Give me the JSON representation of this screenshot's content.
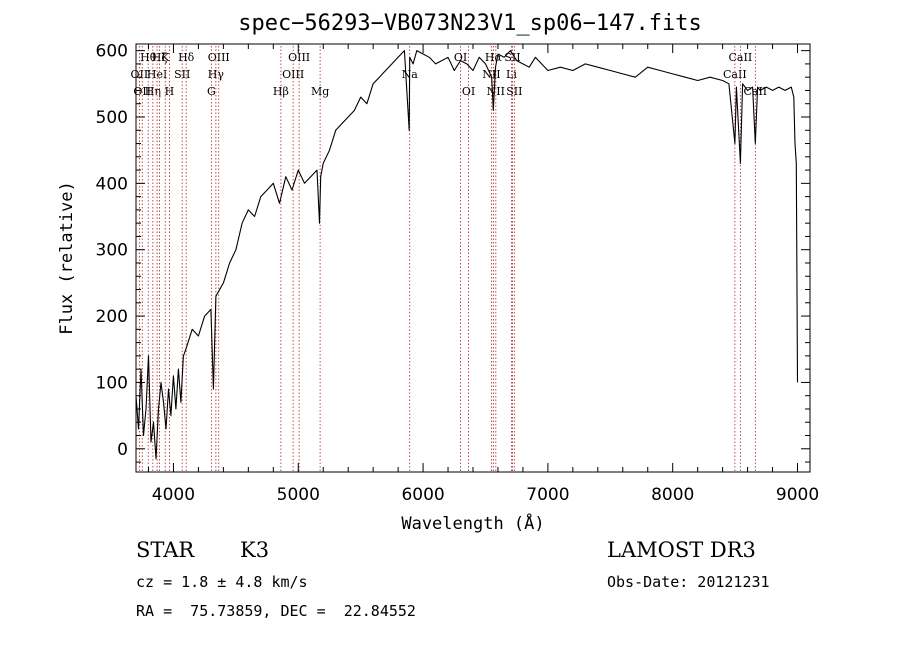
{
  "chart_data": {
    "type": "line",
    "title": "spec−56293−VB073N23V1_sp06−147.fits",
    "xlabel": "Wavelength (Å)",
    "ylabel": "Flux (relative)",
    "xlim": [
      3700,
      9100
    ],
    "ylim": [
      -35,
      610
    ],
    "xticks": [
      4000,
      5000,
      6000,
      7000,
      8000,
      9000
    ],
    "yticks": [
      0,
      100,
      200,
      300,
      400,
      500,
      600
    ],
    "grid": false,
    "colors": {
      "line": "#000000",
      "marker": "#b22222",
      "axes": "#000000",
      "background": "#ffffff"
    },
    "series": [
      {
        "name": "flux",
        "x": [
          3700,
          3720,
          3740,
          3760,
          3780,
          3800,
          3820,
          3840,
          3860,
          3880,
          3900,
          3920,
          3940,
          3960,
          3980,
          4000,
          4020,
          4040,
          4060,
          4080,
          4100,
          4150,
          4200,
          4250,
          4300,
          4320,
          4340,
          4400,
          4450,
          4500,
          4550,
          4600,
          4650,
          4700,
          4750,
          4800,
          4850,
          4900,
          4950,
          5000,
          5050,
          5100,
          5150,
          5170,
          5180,
          5200,
          5250,
          5300,
          5350,
          5400,
          5450,
          5500,
          5550,
          5600,
          5650,
          5700,
          5750,
          5800,
          5850,
          5889,
          5893,
          5920,
          5950,
          6000,
          6050,
          6100,
          6150,
          6200,
          6250,
          6300,
          6350,
          6400,
          6450,
          6500,
          6550,
          6563,
          6580,
          6600,
          6650,
          6700,
          6750,
          6800,
          6850,
          6900,
          6950,
          7000,
          7100,
          7200,
          7300,
          7400,
          7500,
          7600,
          7700,
          7800,
          7900,
          8000,
          8100,
          8200,
          8300,
          8400,
          8450,
          8498,
          8510,
          8542,
          8560,
          8600,
          8640,
          8662,
          8680,
          8700,
          8750,
          8800,
          8850,
          8900,
          8950,
          8970,
          8980,
          8990,
          9000
        ],
        "y": [
          80,
          30,
          120,
          20,
          60,
          140,
          10,
          40,
          -15,
          60,
          100,
          70,
          30,
          90,
          50,
          110,
          60,
          120,
          70,
          140,
          150,
          180,
          170,
          200,
          210,
          90,
          230,
          250,
          280,
          300,
          340,
          360,
          350,
          380,
          390,
          400,
          370,
          410,
          390,
          420,
          400,
          410,
          420,
          340,
          410,
          430,
          450,
          480,
          490,
          500,
          510,
          530,
          520,
          550,
          560,
          570,
          580,
          590,
          600,
          480,
          590,
          580,
          600,
          595,
          590,
          580,
          585,
          590,
          570,
          585,
          580,
          570,
          590,
          580,
          560,
          510,
          575,
          595,
          590,
          600,
          585,
          580,
          575,
          590,
          580,
          570,
          575,
          570,
          580,
          575,
          570,
          565,
          560,
          575,
          570,
          565,
          560,
          555,
          560,
          555,
          550,
          460,
          545,
          430,
          550,
          540,
          545,
          460,
          545,
          540,
          545,
          540,
          545,
          540,
          545,
          530,
          460,
          430,
          100
        ]
      }
    ],
    "line_ids": [
      {
        "wl": 3727,
        "name": "OII",
        "row": 2
      },
      {
        "wl": 3750,
        "name": "OII",
        "row": 3
      },
      {
        "wl": 3798,
        "name": "Hθ",
        "row": 1
      },
      {
        "wl": 3835,
        "name": "Hη",
        "row": 3
      },
      {
        "wl": 3869,
        "name": "HeI",
        "row": 2
      },
      {
        "wl": 3889,
        "name": "Hζ",
        "row": 1
      },
      {
        "wl": 3934,
        "name": "K",
        "row": 1
      },
      {
        "wl": 3968,
        "name": "H",
        "row": 3
      },
      {
        "wl": 4070,
        "name": "SII",
        "row": 2
      },
      {
        "wl": 4102,
        "name": "Hδ",
        "row": 1
      },
      {
        "wl": 4304,
        "name": "G",
        "row": 3
      },
      {
        "wl": 4340,
        "name": "Hγ",
        "row": 2
      },
      {
        "wl": 4363,
        "name": "OIII",
        "row": 1
      },
      {
        "wl": 4861,
        "name": "Hβ",
        "row": 3
      },
      {
        "wl": 4959,
        "name": "OIII",
        "row": 2
      },
      {
        "wl": 5007,
        "name": "OIII",
        "row": 1
      },
      {
        "wl": 5175,
        "name": "Mg",
        "row": 3
      },
      {
        "wl": 5893,
        "name": "Na",
        "row": 2
      },
      {
        "wl": 6300,
        "name": "OI",
        "row": 1
      },
      {
        "wl": 6364,
        "name": "OI",
        "row": 3
      },
      {
        "wl": 6548,
        "name": "NII",
        "row": 2
      },
      {
        "wl": 6563,
        "name": "Hα",
        "row": 1
      },
      {
        "wl": 6583,
        "name": "NII",
        "row": 3
      },
      {
        "wl": 6708,
        "name": "Li",
        "row": 2
      },
      {
        "wl": 6716,
        "name": "SII",
        "row": 1
      },
      {
        "wl": 6731,
        "name": "SII",
        "row": 3
      },
      {
        "wl": 8498,
        "name": "CaII",
        "row": 2
      },
      {
        "wl": 8542,
        "name": "CaII",
        "row": 1
      },
      {
        "wl": 8662,
        "name": "CaII",
        "row": 3
      }
    ]
  },
  "info": {
    "class_label": "STAR",
    "subclass": "K3",
    "survey": "LAMOST DR3",
    "cz": "cz = 1.8 ± 4.8 km/s",
    "obs_date": "Obs-Date: 20121231",
    "coords": "RA =  75.73859, DEC =  22.84552"
  }
}
